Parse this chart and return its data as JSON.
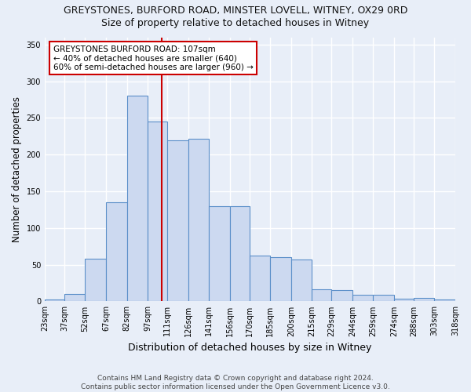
{
  "title1": "GREYSTONES, BURFORD ROAD, MINSTER LOVELL, WITNEY, OX29 0RD",
  "title2": "Size of property relative to detached houses in Witney",
  "xlabel": "Distribution of detached houses by size in Witney",
  "ylabel": "Number of detached properties",
  "footnote1": "Contains HM Land Registry data © Crown copyright and database right 2024.",
  "footnote2": "Contains public sector information licensed under the Open Government Licence v3.0.",
  "bins": [
    "23sqm",
    "37sqm",
    "52sqm",
    "67sqm",
    "82sqm",
    "97sqm",
    "111sqm",
    "126sqm",
    "141sqm",
    "156sqm",
    "170sqm",
    "185sqm",
    "200sqm",
    "215sqm",
    "229sqm",
    "244sqm",
    "259sqm",
    "274sqm",
    "288sqm",
    "303sqm",
    "318sqm"
  ],
  "bin_edges": [
    23,
    37,
    52,
    67,
    82,
    97,
    111,
    126,
    141,
    156,
    170,
    185,
    200,
    215,
    229,
    244,
    259,
    274,
    288,
    303,
    318
  ],
  "values_bars": [
    3,
    10,
    58,
    135,
    280,
    245,
    220,
    222,
    130,
    130,
    62,
    60,
    57,
    17,
    15,
    9,
    9,
    4,
    5,
    3
  ],
  "bar_color": "#ccd9f0",
  "bar_edge_color": "#5b8fc9",
  "ref_line_x": 107,
  "ref_line_color": "#cc0000",
  "annotation_title": "GREYSTONES BURFORD ROAD: 107sqm",
  "annotation_line1": "← 40% of detached houses are smaller (640)",
  "annotation_line2": "60% of semi-detached houses are larger (960) →",
  "annotation_box_color": "#ffffff",
  "annotation_box_edge": "#cc0000",
  "ylim": [
    0,
    360
  ],
  "yticks": [
    0,
    50,
    100,
    150,
    200,
    250,
    300,
    350
  ],
  "bg_color": "#e8eef8",
  "plot_bg_color": "#e8eef8",
  "grid_color": "#ffffff",
  "title1_fontsize": 9,
  "title2_fontsize": 9,
  "xlabel_fontsize": 9,
  "ylabel_fontsize": 8.5,
  "tick_fontsize": 7,
  "annot_fontsize": 7.5,
  "footnote_fontsize": 6.5
}
